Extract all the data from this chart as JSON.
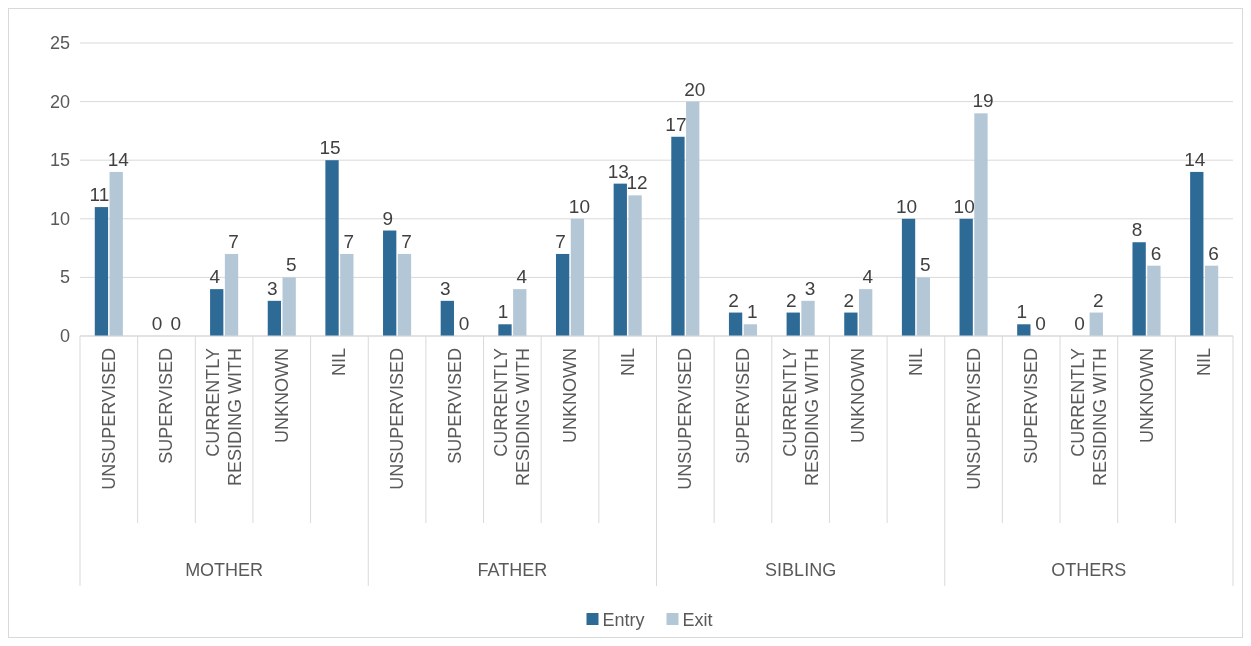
{
  "chart_data": {
    "type": "bar",
    "categories": [
      "UNSUPERVISED",
      "SUPERVISED",
      "CURRENTLY RESIDING WITH",
      "UNKNOWN",
      "NIL",
      "UNSUPERVISED",
      "SUPERVISED",
      "CURRENTLY RESIDING WITH",
      "UNKNOWN",
      "NIL",
      "UNSUPERVISED",
      "SUPERVISED",
      "CURRENTLY RESIDING WITH",
      "UNKNOWN",
      "NIL",
      "UNSUPERVISED",
      "SUPERVISED",
      "CURRENTLY RESIDING WITH",
      "UNKNOWN",
      "NIL"
    ],
    "series": [
      {
        "name": "Entry",
        "color": "#2e6a96",
        "values": [
          11,
          0,
          4,
          3,
          15,
          9,
          3,
          1,
          7,
          13,
          17,
          2,
          2,
          2,
          10,
          10,
          1,
          0,
          8,
          14
        ]
      },
      {
        "name": "Exit",
        "color": "#b4c7d7",
        "values": [
          14,
          0,
          7,
          5,
          7,
          7,
          0,
          4,
          10,
          12,
          20,
          1,
          3,
          4,
          5,
          19,
          0,
          2,
          6,
          6
        ]
      }
    ],
    "annotations": [
      "MOTHER",
      "FATHER",
      "SIBLING",
      "OTHERS"
    ],
    "ylim": [
      0,
      25
    ],
    "yticks": [
      0,
      5,
      10,
      15,
      20,
      25
    ],
    "grid": "y",
    "legend": "bottom",
    "data_labels": true
  }
}
